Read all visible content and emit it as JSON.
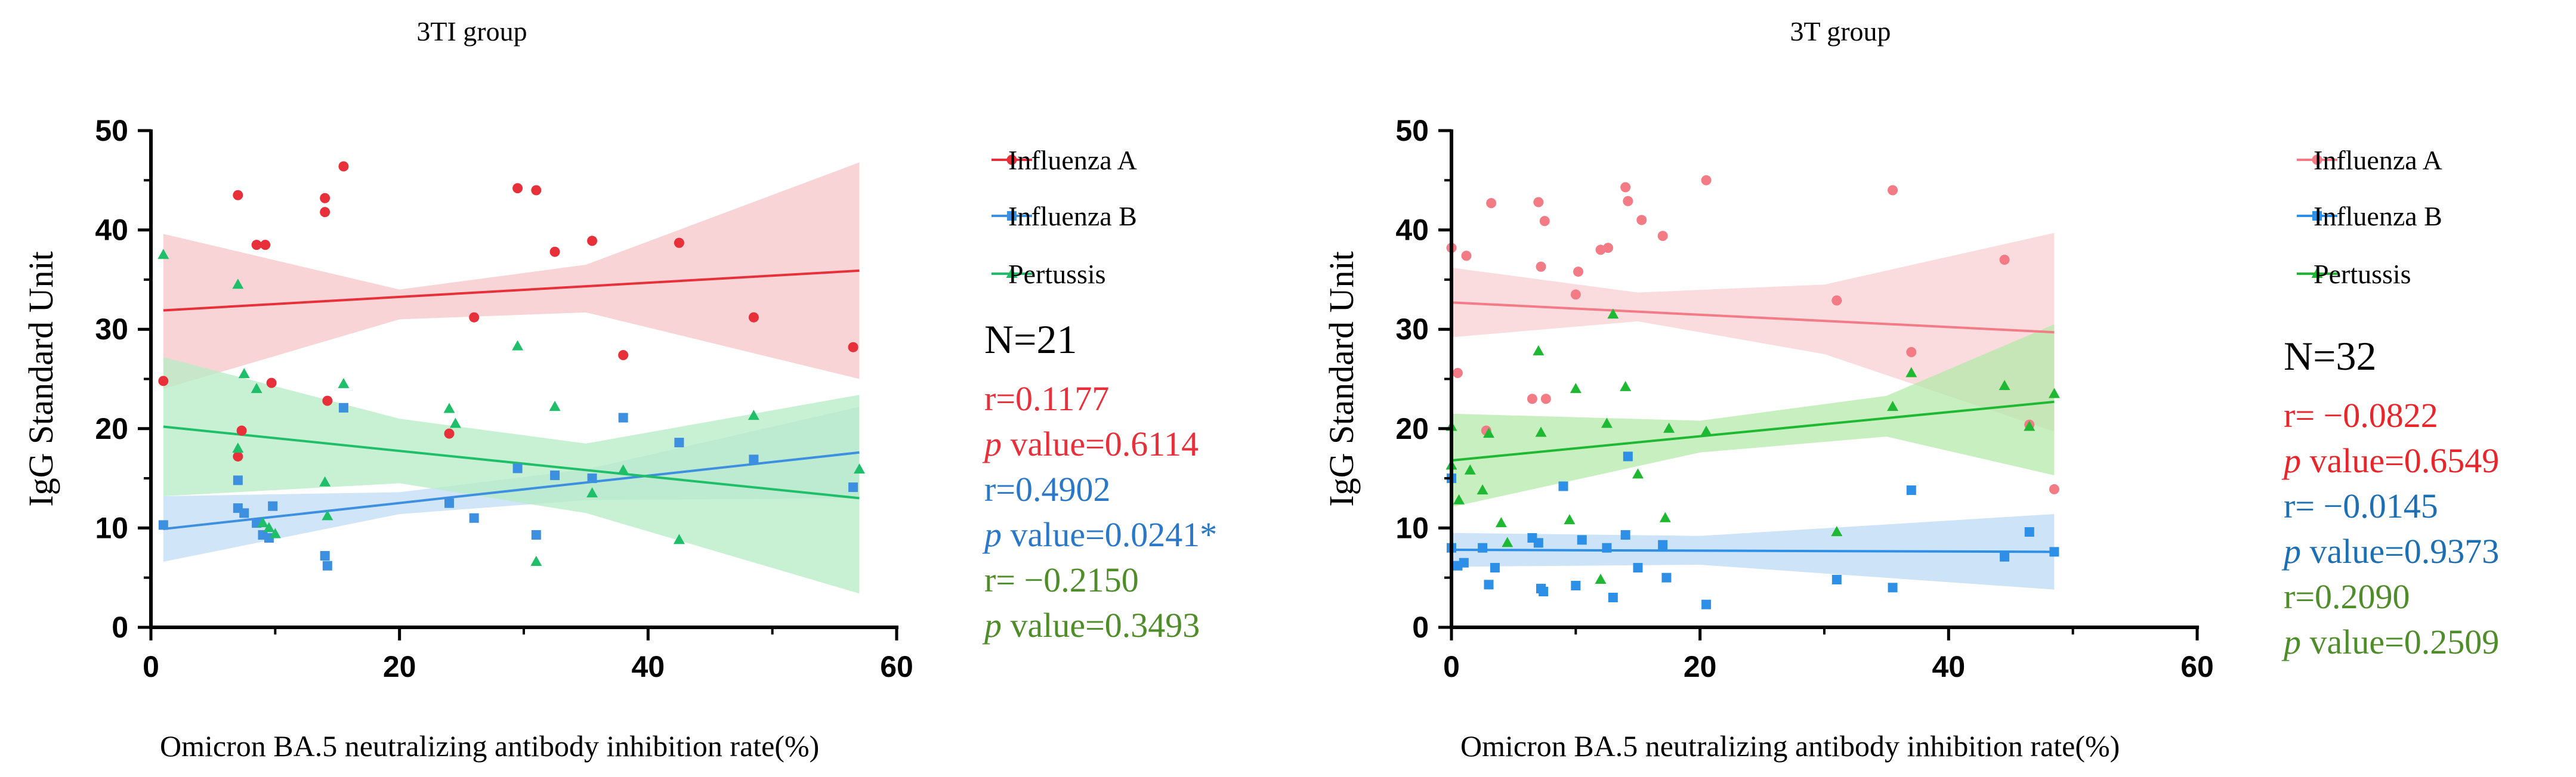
{
  "chart_data": [
    {
      "type": "scatter",
      "title": "3TI group",
      "xlabel": "Omicron BA.5 neutralizing antibody inhibition rate(%)",
      "ylabel": "IgG Standard Unit",
      "xlim": [
        0,
        60
      ],
      "ylim": [
        0,
        50
      ],
      "xticks": [
        "0",
        "20",
        "40",
        "60"
      ],
      "yticks": [
        "0",
        "10",
        "20",
        "30",
        "40",
        "50"
      ],
      "grid": false,
      "legend_position": "right",
      "series": [
        {
          "name": "Influenza A",
          "marker": "circle",
          "color": "#e8303a",
          "band_color": "#f7c6c9",
          "fit": [
            [
              1,
              31.9
            ],
            [
              57,
              35.9
            ]
          ],
          "band_upper": [
            [
              1,
              39.6
            ],
            [
              20,
              34.0
            ],
            [
              35,
              36.5
            ],
            [
              57,
              46.8
            ]
          ],
          "band_lower": [
            [
              1,
              24.0
            ],
            [
              20,
              31.0
            ],
            [
              35,
              31.7
            ],
            [
              57,
              25.0
            ]
          ],
          "points": [
            [
              1,
              24.8
            ],
            [
              7,
              43.5
            ],
            [
              7,
              17.2
            ],
            [
              7.3,
              19.8
            ],
            [
              8.5,
              38.5
            ],
            [
              9.2,
              38.5
            ],
            [
              9.7,
              24.6
            ],
            [
              14,
              41.8
            ],
            [
              14,
              43.2
            ],
            [
              14.2,
              22.8
            ],
            [
              15.5,
              46.4
            ],
            [
              24,
              19.5
            ],
            [
              26,
              31.2
            ],
            [
              29.5,
              44.2
            ],
            [
              31,
              44
            ],
            [
              32.5,
              37.8
            ],
            [
              35.5,
              38.9
            ],
            [
              38,
              27.4
            ],
            [
              42.5,
              38.7
            ],
            [
              48.5,
              31.2
            ],
            [
              56.5,
              28.2
            ]
          ]
        },
        {
          "name": "Influenza B",
          "marker": "square",
          "color": "#3d8fe0",
          "band_color": "#c2dcf6",
          "fit": [
            [
              1,
              9.9
            ],
            [
              57,
              17.6
            ]
          ],
          "band_upper": [
            [
              1,
              13.2
            ],
            [
              20,
              13.6
            ],
            [
              35,
              15.9
            ],
            [
              57,
              22.2
            ]
          ],
          "band_lower": [
            [
              1,
              6.6
            ],
            [
              20,
              11.4
            ],
            [
              35,
              12.8
            ],
            [
              57,
              13.0
            ]
          ],
          "points": [
            [
              1,
              10.3
            ],
            [
              7,
              14.8
            ],
            [
              7,
              12.0
            ],
            [
              7.5,
              11.5
            ],
            [
              8.5,
              10.5
            ],
            [
              9,
              9.3
            ],
            [
              9.5,
              9.0
            ],
            [
              9.8,
              12.2
            ],
            [
              14,
              7.2
            ],
            [
              14.2,
              6.2
            ],
            [
              15.5,
              22.1
            ],
            [
              24,
              12.5
            ],
            [
              26,
              11.0
            ],
            [
              29.5,
              16.0
            ],
            [
              31,
              9.3
            ],
            [
              32.5,
              15.3
            ],
            [
              35.5,
              15.0
            ],
            [
              38,
              21.1
            ],
            [
              42.5,
              18.6
            ],
            [
              48.5,
              16.9
            ],
            [
              56.5,
              14.1
            ]
          ]
        },
        {
          "name": "Pertussis",
          "marker": "triangle",
          "color": "#1fbf6a",
          "band_color": "#b5ecc5",
          "fit": [
            [
              1,
              20.2
            ],
            [
              57,
              13.0
            ]
          ],
          "band_upper": [
            [
              1,
              27.2
            ],
            [
              20,
              21.0
            ],
            [
              35,
              18.5
            ],
            [
              57,
              23.4
            ]
          ],
          "band_lower": [
            [
              1,
              13.2
            ],
            [
              20,
              14.5
            ],
            [
              35,
              11.5
            ],
            [
              57,
              3.4
            ]
          ],
          "points": [
            [
              1,
              37.5
            ],
            [
              7,
              34.5
            ],
            [
              7,
              18.0
            ],
            [
              7.5,
              25.5
            ],
            [
              8.5,
              24.0
            ],
            [
              9,
              10.5
            ],
            [
              9.5,
              10.0
            ],
            [
              10,
              9.4
            ],
            [
              14,
              14.6
            ],
            [
              14.2,
              11.2
            ],
            [
              15.5,
              24.5
            ],
            [
              24,
              22.0
            ],
            [
              24.5,
              20.5
            ],
            [
              29.5,
              28.3
            ],
            [
              31,
              6.6
            ],
            [
              32.5,
              22.2
            ],
            [
              35.5,
              13.5
            ],
            [
              38,
              15.8
            ],
            [
              42.5,
              8.8
            ],
            [
              48.5,
              21.3
            ],
            [
              57,
              15.9
            ]
          ]
        }
      ],
      "stats": {
        "n": "N=21",
        "lines": [
          {
            "prefix": "",
            "text": "r=0.1177",
            "color": "#e8303a"
          },
          {
            "prefix": "p",
            "text": " value=0.6114",
            "color": "#e8303a"
          },
          {
            "prefix": "",
            "text": "r=0.4902",
            "color": "#2b78c8"
          },
          {
            "prefix": "p",
            "text": " value=0.0241*",
            "color": "#2b78c8"
          },
          {
            "prefix": "",
            "text": "r= −0.2150",
            "color": "#4f8c2a"
          },
          {
            "prefix": "p",
            "text": " value=0.3493",
            "color": "#4f8c2a"
          }
        ]
      }
    },
    {
      "type": "scatter",
      "title": "3T group",
      "xlabel": "Omicron BA.5 neutralizing antibody inhibition rate(%)",
      "ylabel": "IgG Standard Unit",
      "xlim": [
        0,
        60
      ],
      "ylim": [
        0,
        50
      ],
      "xticks": [
        "0",
        "20",
        "40",
        "60"
      ],
      "yticks": [
        "0",
        "10",
        "20",
        "30",
        "40",
        "50"
      ],
      "grid": false,
      "legend_position": "right",
      "series": [
        {
          "name": "Influenza A",
          "marker": "circle",
          "color": "#f27b85",
          "band_color": "#f9d0d3",
          "fit": [
            [
              0,
              32.7
            ],
            [
              48.5,
              29.7
            ]
          ],
          "band_upper": [
            [
              0,
              36.2
            ],
            [
              15,
              33.7
            ],
            [
              30,
              34.5
            ],
            [
              48.5,
              39.7
            ]
          ],
          "band_lower": [
            [
              0,
              29.2
            ],
            [
              15,
              30.8
            ],
            [
              30,
              27.5
            ],
            [
              48.5,
              19.7
            ]
          ],
          "points": [
            [
              0,
              38.2
            ],
            [
              0.5,
              25.6
            ],
            [
              1.2,
              37.4
            ],
            [
              2.8,
              19.8
            ],
            [
              3.2,
              42.7
            ],
            [
              6.5,
              23.0
            ],
            [
              7,
              42.8
            ],
            [
              7.2,
              36.3
            ],
            [
              7.5,
              40.9
            ],
            [
              7.6,
              23.0
            ],
            [
              10,
              33.5
            ],
            [
              10.2,
              35.8
            ],
            [
              12,
              38.0
            ],
            [
              12.6,
              38.2
            ],
            [
              14,
              44.3
            ],
            [
              14.2,
              42.9
            ],
            [
              15.3,
              41.0
            ],
            [
              17,
              39.4
            ],
            [
              20.5,
              45.0
            ],
            [
              31,
              32.9
            ],
            [
              35.5,
              44.0
            ],
            [
              37,
              27.7
            ],
            [
              44.5,
              37.0
            ],
            [
              46.5,
              20.4
            ],
            [
              48.5,
              13.9
            ]
          ]
        },
        {
          "name": "Influenza B",
          "marker": "square",
          "color": "#2d8fe6",
          "band_color": "#bcd9f6",
          "fit": [
            [
              0,
              7.8
            ],
            [
              48.5,
              7.6
            ]
          ],
          "band_upper": [
            [
              0,
              9.5
            ],
            [
              20,
              9.2
            ],
            [
              48.5,
              11.4
            ]
          ],
          "band_lower": [
            [
              0,
              6.1
            ],
            [
              20,
              6.3
            ],
            [
              48.5,
              3.8
            ]
          ],
          "points": [
            [
              0,
              15.0
            ],
            [
              0,
              8.0
            ],
            [
              0.5,
              6.2
            ],
            [
              1,
              6.5
            ],
            [
              2.5,
              8.0
            ],
            [
              3,
              4.3
            ],
            [
              3.5,
              6.0
            ],
            [
              6.5,
              9.0
            ],
            [
              7,
              8.5
            ],
            [
              7.2,
              3.9
            ],
            [
              7.4,
              3.6
            ],
            [
              9,
              14.2
            ],
            [
              10,
              4.2
            ],
            [
              10.5,
              8.8
            ],
            [
              12.5,
              8.0
            ],
            [
              13,
              3.0
            ],
            [
              14,
              9.3
            ],
            [
              14.2,
              17.2
            ],
            [
              15,
              6.0
            ],
            [
              17,
              8.3
            ],
            [
              17.3,
              5.0
            ],
            [
              20.5,
              2.3
            ],
            [
              31,
              4.8
            ],
            [
              35.5,
              4.0
            ],
            [
              37,
              13.8
            ],
            [
              44.5,
              7.1
            ],
            [
              46.5,
              9.6
            ],
            [
              48.5,
              7.6
            ]
          ]
        },
        {
          "name": "Pertussis",
          "marker": "triangle",
          "color": "#1fb832",
          "band_color": "#b6eaaa",
          "fit": [
            [
              0,
              16.8
            ],
            [
              48.5,
              22.7
            ]
          ],
          "band_upper": [
            [
              0,
              21.5
            ],
            [
              20,
              20.8
            ],
            [
              35,
              23.3
            ],
            [
              48.5,
              30.5
            ]
          ],
          "band_lower": [
            [
              0,
              12.1
            ],
            [
              20,
              17.6
            ],
            [
              35,
              19.2
            ],
            [
              48.5,
              15.3
            ]
          ],
          "points": [
            [
              0,
              20.2
            ],
            [
              0,
              16.3
            ],
            [
              0.6,
              12.8
            ],
            [
              1.5,
              15.8
            ],
            [
              2.5,
              13.8
            ],
            [
              3,
              19.5
            ],
            [
              4,
              10.5
            ],
            [
              4.5,
              8.5
            ],
            [
              7,
              27.8
            ],
            [
              7.2,
              19.6
            ],
            [
              9.5,
              10.8
            ],
            [
              10,
              24.0
            ],
            [
              12,
              4.8
            ],
            [
              12.5,
              20.5
            ],
            [
              13,
              31.5
            ],
            [
              14,
              24.2
            ],
            [
              15,
              15.4
            ],
            [
              17.2,
              11.0
            ],
            [
              17.5,
              20.0
            ],
            [
              20.5,
              19.7
            ],
            [
              31,
              9.6
            ],
            [
              35.5,
              22.2
            ],
            [
              37,
              25.6
            ],
            [
              44.5,
              24.3
            ],
            [
              46.5,
              20.2
            ],
            [
              48.5,
              23.5
            ]
          ]
        }
      ],
      "stats": {
        "n": "N=32",
        "lines": [
          {
            "prefix": "",
            "text": "r= −0.0822",
            "color": "#e8252b"
          },
          {
            "prefix": "p",
            "text": " value=0.6549",
            "color": "#e8252b"
          },
          {
            "prefix": "",
            "text": "r= −0.0145",
            "color": "#1d6fb4"
          },
          {
            "prefix": "p",
            "text": " value=0.9373",
            "color": "#1d6fb4"
          },
          {
            "prefix": "",
            "text": "r=0.2090",
            "color": "#4f8c2a"
          },
          {
            "prefix": "p",
            "text": " value=0.2509",
            "color": "#4f8c2a"
          }
        ]
      }
    }
  ]
}
